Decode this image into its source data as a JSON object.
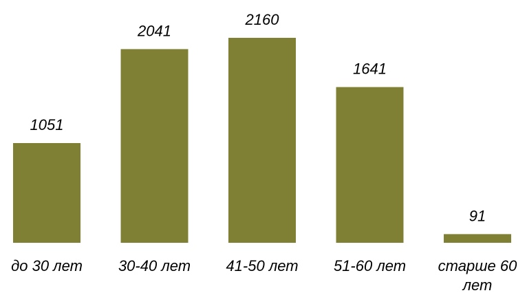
{
  "chart_data": {
    "type": "bar",
    "categories": [
      "до 30 лет",
      "30-40 лет",
      "41-50 лет",
      "51-60 лет",
      "старше 60 лет"
    ],
    "category_lines": [
      [
        "до 30 лет"
      ],
      [
        "30-40 лет"
      ],
      [
        "41-50 лет"
      ],
      [
        "51-60 лет"
      ],
      [
        "старше 60",
        "лет"
      ]
    ],
    "values": [
      1051,
      2041,
      2160,
      1641,
      91
    ],
    "value_labels": [
      "1051",
      "2041",
      "2160",
      "1641",
      "91"
    ],
    "bar_color": "#808034",
    "title": "",
    "xlabel": "",
    "ylabel": "",
    "ylim": [
      0,
      2160
    ],
    "grid": false,
    "legend": "none"
  }
}
